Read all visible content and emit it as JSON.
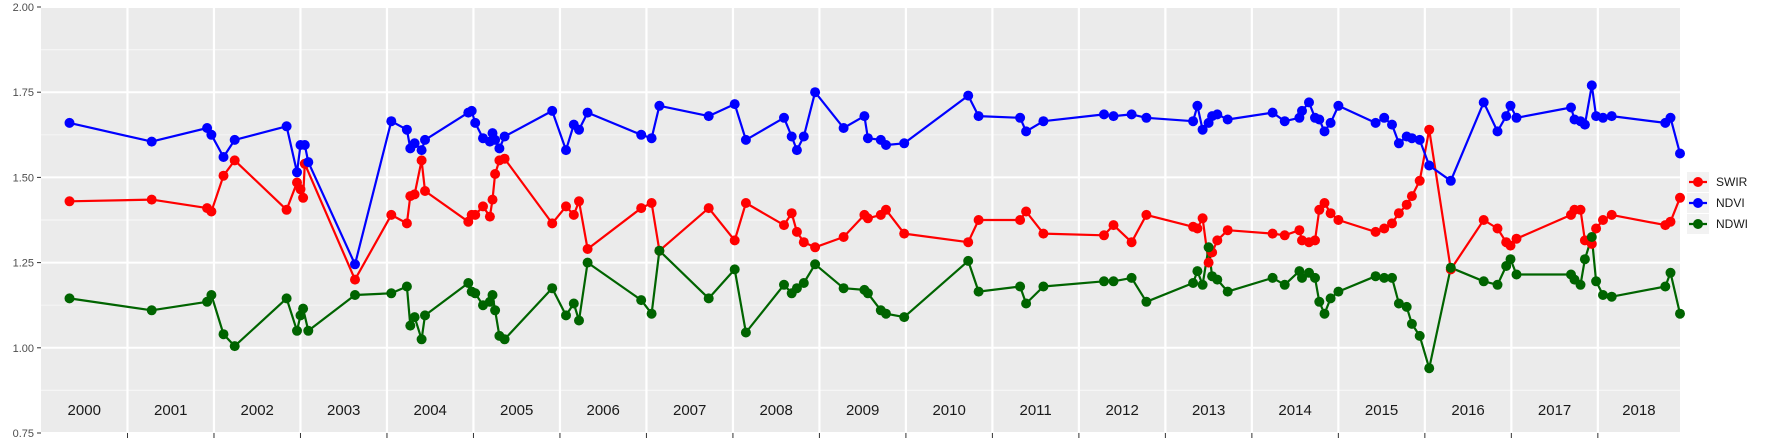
{
  "chart_data": {
    "type": "line",
    "title": "",
    "xlabel": "",
    "ylabel": "",
    "ylim": [
      0.75,
      2.0
    ],
    "yticks": [
      "0.75",
      "1.00",
      "1.25",
      "1.50",
      "1.75",
      "2.00"
    ],
    "xlim": [
      2000,
      2018.95
    ],
    "year_labels": [
      "2000",
      "2001",
      "2002",
      "2003",
      "2004",
      "2005",
      "2006",
      "2007",
      "2008",
      "2009",
      "2010",
      "2011",
      "2012",
      "2013",
      "2014",
      "2015",
      "2016",
      "2017",
      "2018"
    ],
    "grid": true,
    "legend_position": "right",
    "series": [
      {
        "name": "SWIR",
        "color": "#ff0000",
        "points": [
          [
            2000.33,
            1.43
          ],
          [
            2001.28,
            1.435
          ],
          [
            2001.92,
            1.41
          ],
          [
            2001.97,
            1.4
          ],
          [
            2002.11,
            1.505
          ],
          [
            2002.24,
            1.55
          ],
          [
            2002.84,
            1.405
          ],
          [
            2002.96,
            1.485
          ],
          [
            2003.0,
            1.465
          ],
          [
            2003.03,
            1.44
          ],
          [
            2003.05,
            1.54
          ],
          [
            2003.63,
            1.2
          ],
          [
            2004.05,
            1.39
          ],
          [
            2004.23,
            1.365
          ],
          [
            2004.27,
            1.445
          ],
          [
            2004.32,
            1.45
          ],
          [
            2004.4,
            1.55
          ],
          [
            2004.44,
            1.46
          ],
          [
            2004.94,
            1.37
          ],
          [
            2004.98,
            1.39
          ],
          [
            2005.02,
            1.39
          ],
          [
            2005.11,
            1.415
          ],
          [
            2005.19,
            1.385
          ],
          [
            2005.22,
            1.435
          ],
          [
            2005.25,
            1.51
          ],
          [
            2005.3,
            1.55
          ],
          [
            2005.36,
            1.555
          ],
          [
            2005.91,
            1.365
          ],
          [
            2006.07,
            1.415
          ],
          [
            2006.16,
            1.39
          ],
          [
            2006.22,
            1.43
          ],
          [
            2006.32,
            1.29
          ],
          [
            2006.94,
            1.41
          ],
          [
            2007.06,
            1.425
          ],
          [
            2007.15,
            1.285
          ],
          [
            2007.72,
            1.41
          ],
          [
            2008.02,
            1.315
          ],
          [
            2008.15,
            1.425
          ],
          [
            2008.59,
            1.36
          ],
          [
            2008.68,
            1.395
          ],
          [
            2008.74,
            1.34
          ],
          [
            2008.82,
            1.31
          ],
          [
            2008.95,
            1.295
          ],
          [
            2009.28,
            1.325
          ],
          [
            2009.52,
            1.39
          ],
          [
            2009.56,
            1.38
          ],
          [
            2009.71,
            1.39
          ],
          [
            2009.77,
            1.405
          ],
          [
            2009.98,
            1.335
          ],
          [
            2010.72,
            1.31
          ],
          [
            2010.84,
            1.375
          ],
          [
            2011.32,
            1.375
          ],
          [
            2011.39,
            1.4
          ],
          [
            2011.59,
            1.335
          ],
          [
            2012.29,
            1.33
          ],
          [
            2012.4,
            1.36
          ],
          [
            2012.61,
            1.31
          ],
          [
            2012.78,
            1.39
          ],
          [
            2013.32,
            1.355
          ],
          [
            2013.37,
            1.35
          ],
          [
            2013.43,
            1.38
          ],
          [
            2013.5,
            1.25
          ],
          [
            2013.54,
            1.28
          ],
          [
            2013.6,
            1.315
          ],
          [
            2013.72,
            1.345
          ],
          [
            2014.24,
            1.335
          ],
          [
            2014.38,
            1.33
          ],
          [
            2014.55,
            1.345
          ],
          [
            2014.58,
            1.315
          ],
          [
            2014.66,
            1.31
          ],
          [
            2014.73,
            1.315
          ],
          [
            2014.78,
            1.405
          ],
          [
            2014.84,
            1.425
          ],
          [
            2014.91,
            1.395
          ],
          [
            2015.0,
            1.375
          ],
          [
            2015.43,
            1.34
          ],
          [
            2015.53,
            1.35
          ],
          [
            2015.62,
            1.365
          ],
          [
            2015.7,
            1.395
          ],
          [
            2015.79,
            1.42
          ],
          [
            2015.85,
            1.445
          ],
          [
            2015.94,
            1.49
          ],
          [
            2016.05,
            1.64
          ],
          [
            2016.3,
            1.23
          ],
          [
            2016.68,
            1.375
          ],
          [
            2016.84,
            1.35
          ],
          [
            2016.94,
            1.31
          ],
          [
            2016.99,
            1.3
          ],
          [
            2017.06,
            1.32
          ],
          [
            2017.69,
            1.39
          ],
          [
            2017.73,
            1.405
          ],
          [
            2017.8,
            1.405
          ],
          [
            2017.85,
            1.315
          ],
          [
            2017.93,
            1.305
          ],
          [
            2017.98,
            1.35
          ],
          [
            2018.06,
            1.375
          ],
          [
            2018.16,
            1.39
          ],
          [
            2018.78,
            1.36
          ],
          [
            2018.84,
            1.37
          ],
          [
            2018.95,
            1.44
          ]
        ]
      },
      {
        "name": "NDVI",
        "color": "#0000ff",
        "points": [
          [
            2000.33,
            1.66
          ],
          [
            2001.28,
            1.605
          ],
          [
            2001.92,
            1.645
          ],
          [
            2001.97,
            1.625
          ],
          [
            2002.11,
            1.56
          ],
          [
            2002.24,
            1.61
          ],
          [
            2002.84,
            1.65
          ],
          [
            2002.96,
            1.515
          ],
          [
            2003.0,
            1.595
          ],
          [
            2003.05,
            1.595
          ],
          [
            2003.09,
            1.545
          ],
          [
            2003.63,
            1.245
          ],
          [
            2004.05,
            1.665
          ],
          [
            2004.23,
            1.64
          ],
          [
            2004.27,
            1.585
          ],
          [
            2004.32,
            1.6
          ],
          [
            2004.4,
            1.58
          ],
          [
            2004.44,
            1.61
          ],
          [
            2004.94,
            1.69
          ],
          [
            2004.98,
            1.695
          ],
          [
            2005.02,
            1.66
          ],
          [
            2005.11,
            1.615
          ],
          [
            2005.19,
            1.605
          ],
          [
            2005.22,
            1.63
          ],
          [
            2005.25,
            1.61
          ],
          [
            2005.3,
            1.585
          ],
          [
            2005.36,
            1.62
          ],
          [
            2005.91,
            1.695
          ],
          [
            2006.07,
            1.58
          ],
          [
            2006.16,
            1.655
          ],
          [
            2006.22,
            1.64
          ],
          [
            2006.32,
            1.69
          ],
          [
            2006.94,
            1.625
          ],
          [
            2007.06,
            1.615
          ],
          [
            2007.15,
            1.71
          ],
          [
            2007.72,
            1.68
          ],
          [
            2008.02,
            1.715
          ],
          [
            2008.15,
            1.61
          ],
          [
            2008.59,
            1.675
          ],
          [
            2008.68,
            1.62
          ],
          [
            2008.74,
            1.58
          ],
          [
            2008.82,
            1.62
          ],
          [
            2008.95,
            1.75
          ],
          [
            2009.28,
            1.645
          ],
          [
            2009.52,
            1.68
          ],
          [
            2009.56,
            1.615
          ],
          [
            2009.71,
            1.61
          ],
          [
            2009.77,
            1.595
          ],
          [
            2009.98,
            1.6
          ],
          [
            2010.72,
            1.74
          ],
          [
            2010.84,
            1.68
          ],
          [
            2011.32,
            1.675
          ],
          [
            2011.39,
            1.635
          ],
          [
            2011.59,
            1.665
          ],
          [
            2012.29,
            1.685
          ],
          [
            2012.4,
            1.68
          ],
          [
            2012.61,
            1.685
          ],
          [
            2012.78,
            1.675
          ],
          [
            2013.32,
            1.665
          ],
          [
            2013.37,
            1.71
          ],
          [
            2013.43,
            1.64
          ],
          [
            2013.5,
            1.66
          ],
          [
            2013.54,
            1.68
          ],
          [
            2013.6,
            1.685
          ],
          [
            2013.72,
            1.67
          ],
          [
            2014.24,
            1.69
          ],
          [
            2014.38,
            1.665
          ],
          [
            2014.55,
            1.675
          ],
          [
            2014.58,
            1.695
          ],
          [
            2014.66,
            1.72
          ],
          [
            2014.73,
            1.675
          ],
          [
            2014.78,
            1.67
          ],
          [
            2014.84,
            1.635
          ],
          [
            2014.91,
            1.66
          ],
          [
            2015.0,
            1.71
          ],
          [
            2015.43,
            1.66
          ],
          [
            2015.53,
            1.675
          ],
          [
            2015.62,
            1.655
          ],
          [
            2015.7,
            1.6
          ],
          [
            2015.79,
            1.62
          ],
          [
            2015.85,
            1.615
          ],
          [
            2015.94,
            1.61
          ],
          [
            2016.05,
            1.535
          ],
          [
            2016.3,
            1.49
          ],
          [
            2016.68,
            1.72
          ],
          [
            2016.84,
            1.635
          ],
          [
            2016.94,
            1.68
          ],
          [
            2016.99,
            1.71
          ],
          [
            2017.06,
            1.675
          ],
          [
            2017.69,
            1.705
          ],
          [
            2017.73,
            1.67
          ],
          [
            2017.8,
            1.665
          ],
          [
            2017.85,
            1.655
          ],
          [
            2017.93,
            1.77
          ],
          [
            2017.98,
            1.68
          ],
          [
            2018.06,
            1.675
          ],
          [
            2018.16,
            1.68
          ],
          [
            2018.78,
            1.66
          ],
          [
            2018.84,
            1.675
          ],
          [
            2018.95,
            1.57
          ]
        ]
      },
      {
        "name": "NDWI",
        "color": "#006400",
        "points": [
          [
            2000.33,
            1.145
          ],
          [
            2001.28,
            1.11
          ],
          [
            2001.92,
            1.135
          ],
          [
            2001.97,
            1.155
          ],
          [
            2002.11,
            1.04
          ],
          [
            2002.24,
            1.005
          ],
          [
            2002.84,
            1.145
          ],
          [
            2002.96,
            1.05
          ],
          [
            2003.0,
            1.095
          ],
          [
            2003.03,
            1.115
          ],
          [
            2003.09,
            1.05
          ],
          [
            2003.63,
            1.155
          ],
          [
            2004.05,
            1.16
          ],
          [
            2004.23,
            1.18
          ],
          [
            2004.27,
            1.065
          ],
          [
            2004.32,
            1.09
          ],
          [
            2004.4,
            1.025
          ],
          [
            2004.44,
            1.095
          ],
          [
            2004.94,
            1.19
          ],
          [
            2004.98,
            1.165
          ],
          [
            2005.02,
            1.16
          ],
          [
            2005.11,
            1.125
          ],
          [
            2005.19,
            1.135
          ],
          [
            2005.22,
            1.155
          ],
          [
            2005.25,
            1.11
          ],
          [
            2005.3,
            1.035
          ],
          [
            2005.36,
            1.025
          ],
          [
            2005.91,
            1.175
          ],
          [
            2006.07,
            1.095
          ],
          [
            2006.16,
            1.13
          ],
          [
            2006.22,
            1.08
          ],
          [
            2006.32,
            1.25
          ],
          [
            2006.94,
            1.14
          ],
          [
            2007.06,
            1.1
          ],
          [
            2007.15,
            1.285
          ],
          [
            2007.72,
            1.145
          ],
          [
            2008.02,
            1.23
          ],
          [
            2008.15,
            1.045
          ],
          [
            2008.59,
            1.185
          ],
          [
            2008.68,
            1.16
          ],
          [
            2008.74,
            1.175
          ],
          [
            2008.82,
            1.19
          ],
          [
            2008.95,
            1.245
          ],
          [
            2009.28,
            1.175
          ],
          [
            2009.52,
            1.17
          ],
          [
            2009.56,
            1.16
          ],
          [
            2009.71,
            1.11
          ],
          [
            2009.77,
            1.1
          ],
          [
            2009.98,
            1.09
          ],
          [
            2010.72,
            1.255
          ],
          [
            2010.84,
            1.165
          ],
          [
            2011.32,
            1.18
          ],
          [
            2011.39,
            1.13
          ],
          [
            2011.59,
            1.18
          ],
          [
            2012.29,
            1.195
          ],
          [
            2012.4,
            1.195
          ],
          [
            2012.61,
            1.205
          ],
          [
            2012.78,
            1.135
          ],
          [
            2013.32,
            1.19
          ],
          [
            2013.37,
            1.225
          ],
          [
            2013.43,
            1.185
          ],
          [
            2013.5,
            1.295
          ],
          [
            2013.54,
            1.21
          ],
          [
            2013.6,
            1.2
          ],
          [
            2013.72,
            1.165
          ],
          [
            2014.24,
            1.205
          ],
          [
            2014.38,
            1.185
          ],
          [
            2014.55,
            1.225
          ],
          [
            2014.58,
            1.205
          ],
          [
            2014.66,
            1.22
          ],
          [
            2014.73,
            1.205
          ],
          [
            2014.78,
            1.135
          ],
          [
            2014.84,
            1.1
          ],
          [
            2014.91,
            1.145
          ],
          [
            2015.0,
            1.165
          ],
          [
            2015.43,
            1.21
          ],
          [
            2015.53,
            1.205
          ],
          [
            2015.62,
            1.205
          ],
          [
            2015.7,
            1.13
          ],
          [
            2015.79,
            1.12
          ],
          [
            2015.85,
            1.07
          ],
          [
            2015.94,
            1.035
          ],
          [
            2016.05,
            0.94
          ],
          [
            2016.3,
            1.235
          ],
          [
            2016.68,
            1.195
          ],
          [
            2016.84,
            1.185
          ],
          [
            2016.94,
            1.24
          ],
          [
            2016.99,
            1.26
          ],
          [
            2017.06,
            1.215
          ],
          [
            2017.69,
            1.215
          ],
          [
            2017.73,
            1.2
          ],
          [
            2017.8,
            1.185
          ],
          [
            2017.85,
            1.26
          ],
          [
            2017.93,
            1.325
          ],
          [
            2017.98,
            1.195
          ],
          [
            2018.06,
            1.155
          ],
          [
            2018.16,
            1.15
          ],
          [
            2018.78,
            1.18
          ],
          [
            2018.84,
            1.22
          ],
          [
            2018.95,
            1.1
          ]
        ]
      }
    ]
  }
}
